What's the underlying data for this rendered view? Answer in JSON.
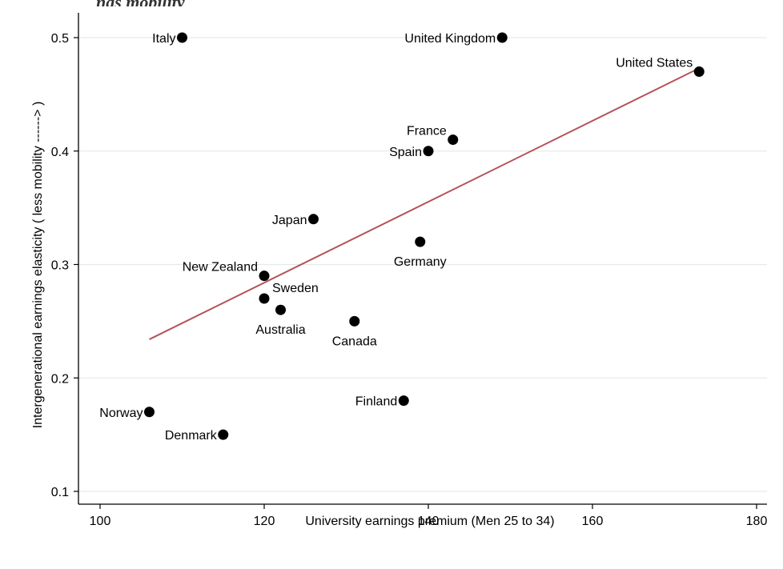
{
  "page": {
    "top_title_fragment": "ngs mobility"
  },
  "chart_data": {
    "type": "scatter",
    "title": "",
    "xlabel": "University earnings premium (Men 25 to 34)",
    "ylabel": "Intergenerational earnings elasticity ( less mobility ------> )",
    "xlim": [
      100,
      180
    ],
    "ylim": [
      0.1,
      0.5
    ],
    "xticks": [
      100,
      120,
      140,
      160,
      180
    ],
    "yticks": [
      0.1,
      0.2,
      0.3,
      0.4,
      0.5
    ],
    "xtick_labels": [
      "100",
      "120",
      "140",
      "160",
      "180"
    ],
    "ytick_labels": [
      "0.1",
      "0.2",
      "0.3",
      "0.4",
      "0.5"
    ],
    "grid": "horizontal",
    "point_color": "#000000",
    "fit_line_color": "#b5535a",
    "points": [
      {
        "label": "Italy",
        "x": 110,
        "y": 0.5,
        "label_pos": "left"
      },
      {
        "label": "United Kingdom",
        "x": 149,
        "y": 0.5,
        "label_pos": "left"
      },
      {
        "label": "United States",
        "x": 173,
        "y": 0.47,
        "label_pos": "top-left"
      },
      {
        "label": "France",
        "x": 143,
        "y": 0.41,
        "label_pos": "top-left"
      },
      {
        "label": "Spain",
        "x": 140,
        "y": 0.4,
        "label_pos": "left"
      },
      {
        "label": "Japan",
        "x": 126,
        "y": 0.34,
        "label_pos": "left"
      },
      {
        "label": "Germany",
        "x": 139,
        "y": 0.32,
        "label_pos": "below"
      },
      {
        "label": "New Zealand",
        "x": 120,
        "y": 0.29,
        "label_pos": "top-left"
      },
      {
        "label": "Sweden",
        "x": 120,
        "y": 0.27,
        "label_pos": "top-right"
      },
      {
        "label": "Australia",
        "x": 122,
        "y": 0.26,
        "label_pos": "below"
      },
      {
        "label": "Canada",
        "x": 131,
        "y": 0.25,
        "label_pos": "below"
      },
      {
        "label": "Finland",
        "x": 137,
        "y": 0.18,
        "label_pos": "left"
      },
      {
        "label": "Norway",
        "x": 106,
        "y": 0.17,
        "label_pos": "left"
      },
      {
        "label": "Denmark",
        "x": 115,
        "y": 0.15,
        "label_pos": "left"
      }
    ],
    "fit_line": {
      "x": [
        106,
        173
      ],
      "y": [
        0.234,
        0.473
      ]
    }
  }
}
